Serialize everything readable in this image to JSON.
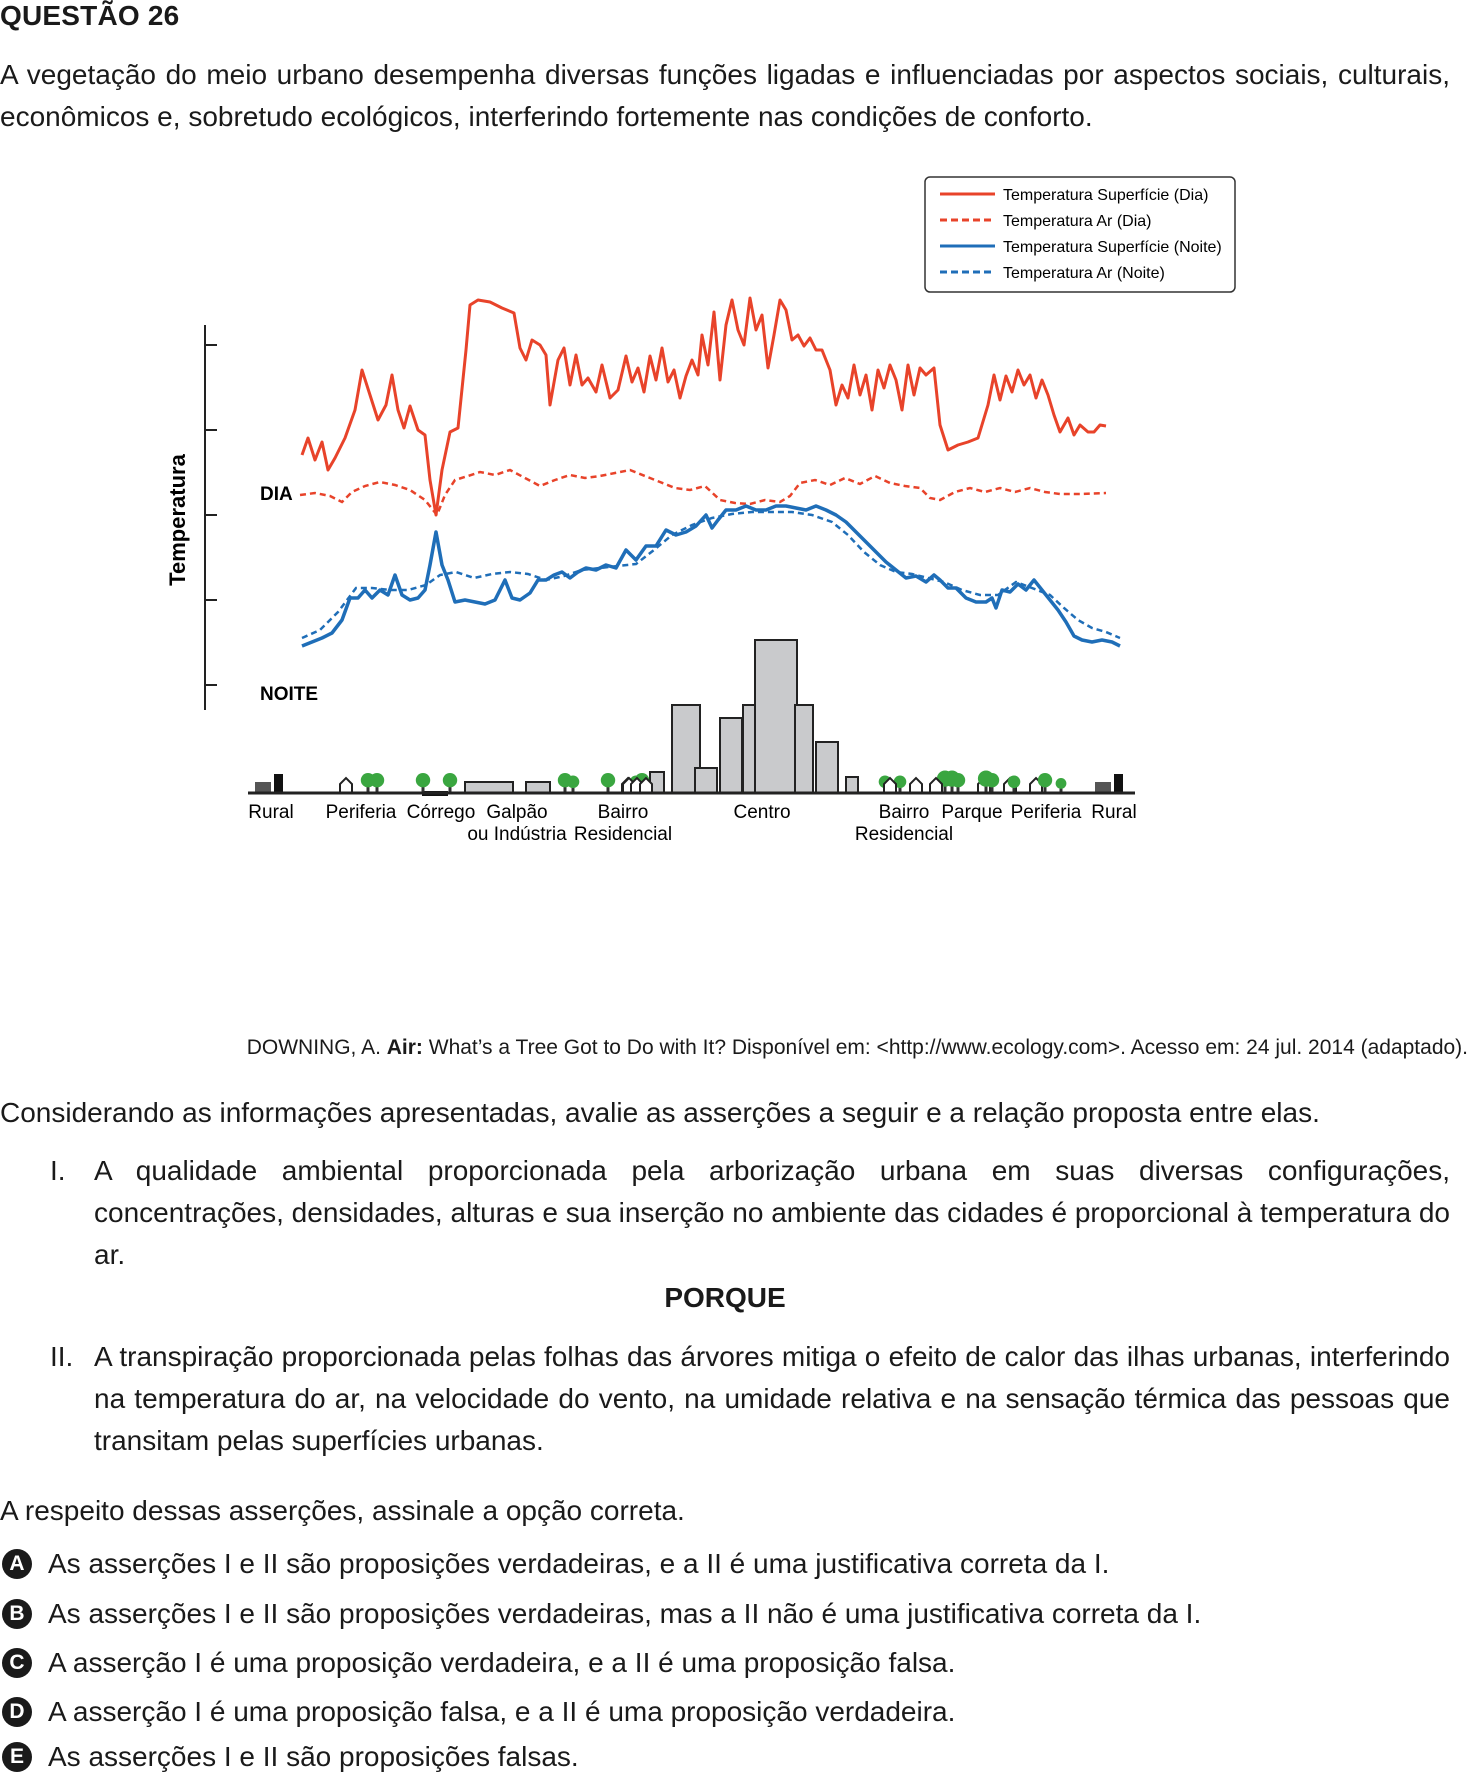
{
  "question": {
    "title": "QUESTÃO 26",
    "intro": "A vegetação do meio urbano desempenha diversas funções ligadas e influenciadas por aspectos sociais, culturais, econômicos e, sobretudo ecológicos, interferindo fortemente nas condições de conforto."
  },
  "chart_data": {
    "type": "line",
    "ylabel": "Temperatura",
    "y_markers": [
      "DIA",
      "NOITE"
    ],
    "legend_position": "top-right",
    "series": [
      {
        "name": "Temperatura Superfície (Dia)",
        "style": "solid",
        "color": "#e8432a"
      },
      {
        "name": "Temperatura Ar (Dia)",
        "style": "dashed",
        "color": "#e8432a"
      },
      {
        "name": "Temperatura Superfície (Noite)",
        "style": "solid",
        "color": "#1f6eb8"
      },
      {
        "name": "Temperatura Ar (Noite)",
        "style": "dashed",
        "color": "#1f6eb8"
      }
    ],
    "categories": [
      "Rural",
      "Periferia",
      "Córrego",
      "Galpão ou Indústria",
      "Bairro Residencial",
      "Centro",
      "Bairro Residencial",
      "Parque",
      "Periferia",
      "Rural"
    ],
    "category_lines": [
      [
        "Rural"
      ],
      [
        "Periferia"
      ],
      [
        "Córrego"
      ],
      [
        "Galpão",
        "ou Indústria"
      ],
      [
        "Bairro",
        "Residencial"
      ],
      [
        "Centro"
      ],
      [
        "Bairro",
        "Residencial"
      ],
      [
        "Parque"
      ],
      [
        "Periferia"
      ],
      [
        "Rural"
      ]
    ],
    "colors": {
      "bar": "#c9cacc",
      "tree": "#3aa640",
      "ground": "#222222"
    }
  },
  "source": {
    "prefix": "DOWNING, A. ",
    "bold": "Air:",
    "rest": " What’s a Tree Got to Do with It? Disponível em: <http://www.ecology.com>. Acesso em: 24 jul. 2014 (adaptado)."
  },
  "ask": "Considerando as informações apresentadas, avalie as asserções a seguir e a relação proposta entre elas.",
  "assertions": [
    {
      "num": "I.",
      "text": "A qualidade ambiental proporcionada pela arborização urbana em suas diversas configurações, concentrações, densidades, alturas e sua inserção no ambiente das cidades é proporcional à temperatura do ar."
    },
    {
      "num": "II.",
      "text": "A transpiração proporcionada pelas folhas das árvores mitiga o efeito de calor das ilhas urbanas, interferindo na temperatura do ar, na velocidade do vento, na umidade relativa e na sensação térmica das pessoas que transitam pelas superfícies urbanas."
    }
  ],
  "porque": "PORQUE",
  "final_question": "A respeito dessas asserções, assinale a opção correta.",
  "options": [
    {
      "letter": "A",
      "text": "As asserções I e II são proposições verdadeiras, e a II é uma justificativa correta da I."
    },
    {
      "letter": "B",
      "text": "As asserções I e II são proposições verdadeiras, mas a II não é uma justificativa correta da I."
    },
    {
      "letter": "C",
      "text": "A asserção I é uma proposição verdadeira, e a II é uma proposição falsa."
    },
    {
      "letter": "D",
      "text": "A asserção I é uma proposição falsa, e a II é uma proposição verdadeira."
    },
    {
      "letter": "E",
      "text": "As asserções I e II são proposições falsas."
    }
  ]
}
